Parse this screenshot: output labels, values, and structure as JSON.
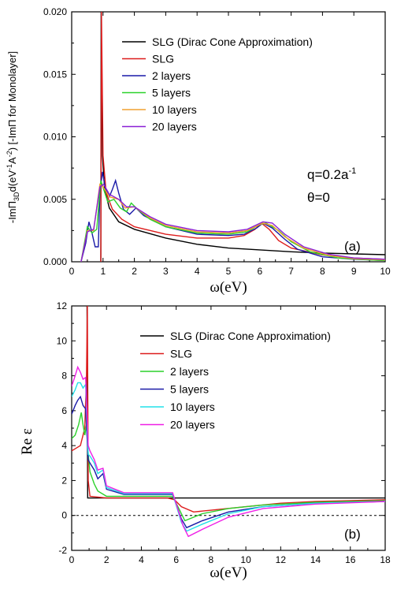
{
  "chart_data": [
    {
      "type": "line",
      "panel_label": "(a)",
      "xlabel": "ω(eV)",
      "ylabel_parts": {
        "a": "-ImΠ",
        "b": "3D",
        "c": "d(eV",
        "d": "-1",
        "e": "A",
        "f": "-2",
        "g": ") [-ImΠ for Monolayer]"
      },
      "xlim": [
        0,
        10
      ],
      "ylim": [
        0,
        0.02
      ],
      "x_ticks": [
        0,
        1,
        2,
        3,
        4,
        5,
        6,
        7,
        8,
        9,
        10
      ],
      "x_tick_labels": [
        "0",
        "1",
        "2",
        "3",
        "4",
        "5",
        "6",
        "7",
        "8",
        "9",
        "10"
      ],
      "y_ticks": [
        0,
        0.005,
        0.01,
        0.015,
        0.02
      ],
      "y_tick_labels": [
        "0.000",
        "0.005",
        "0.010",
        "0.015",
        "0.020"
      ],
      "annotation": {
        "q_text": "q=0.2a",
        "q_sup": "-1",
        "theta_text": "θ=0"
      },
      "series": [
        {
          "name": "SLG (Dirac Cone Approximation)",
          "color": "#000000",
          "points": [
            [
              0.93,
              0
            ],
            [
              0.94,
              0.02
            ],
            [
              0.98,
              0.0085
            ],
            [
              1.05,
              0.0058
            ],
            [
              1.2,
              0.0043
            ],
            [
              1.5,
              0.0032
            ],
            [
              2,
              0.0026
            ],
            [
              3,
              0.0019
            ],
            [
              4,
              0.0014
            ],
            [
              5,
              0.0011
            ],
            [
              6,
              0.00095
            ],
            [
              7,
              0.0008
            ],
            [
              8,
              0.0007
            ],
            [
              9,
              0.00063
            ],
            [
              10,
              0.00057
            ]
          ]
        },
        {
          "name": "SLG",
          "color": "#dd1c1c",
          "points": [
            [
              0.93,
              0
            ],
            [
              0.95,
              0.02
            ],
            [
              1.0,
              0.0085
            ],
            [
              1.1,
              0.0055
            ],
            [
              1.3,
              0.0042
            ],
            [
              1.6,
              0.0034
            ],
            [
              2,
              0.0028
            ],
            [
              3,
              0.0022
            ],
            [
              4,
              0.0019
            ],
            [
              5,
              0.0019
            ],
            [
              5.5,
              0.0021
            ],
            [
              5.85,
              0.0026
            ],
            [
              6.05,
              0.0031
            ],
            [
              6.3,
              0.0026
            ],
            [
              6.6,
              0.0017
            ],
            [
              7,
              0.0011
            ],
            [
              8,
              0.00055
            ],
            [
              9,
              0.0003
            ],
            [
              10,
              0.0002
            ]
          ]
        },
        {
          "name": "2 layers",
          "color": "#1a1aa8",
          "points": [
            [
              0.3,
              0
            ],
            [
              0.45,
              0.0015
            ],
            [
              0.55,
              0.0032
            ],
            [
              0.62,
              0.0026
            ],
            [
              0.75,
              0.0012
            ],
            [
              0.85,
              0.0012
            ],
            [
              0.9,
              0.0055
            ],
            [
              0.98,
              0.0072
            ],
            [
              1.08,
              0.0058
            ],
            [
              1.2,
              0.0052
            ],
            [
              1.3,
              0.0058
            ],
            [
              1.4,
              0.0065
            ],
            [
              1.5,
              0.0055
            ],
            [
              1.65,
              0.0042
            ],
            [
              1.85,
              0.0038
            ],
            [
              2.05,
              0.0043
            ],
            [
              2.3,
              0.0037
            ],
            [
              3,
              0.0028
            ],
            [
              4,
              0.0022
            ],
            [
              5,
              0.0021
            ],
            [
              5.5,
              0.0022
            ],
            [
              5.9,
              0.0027
            ],
            [
              6.1,
              0.0031
            ],
            [
              6.4,
              0.0027
            ],
            [
              6.8,
              0.0018
            ],
            [
              7.2,
              0.001
            ],
            [
              8,
              0.0004
            ],
            [
              9,
              0.0002
            ],
            [
              10,
              0.0001
            ]
          ]
        },
        {
          "name": "5 layers",
          "color": "#2bd12b",
          "points": [
            [
              0.3,
              0
            ],
            [
              0.5,
              0.0028
            ],
            [
              0.65,
              0.0023
            ],
            [
              0.8,
              0.0026
            ],
            [
              0.93,
              0.0065
            ],
            [
              1.02,
              0.0058
            ],
            [
              1.15,
              0.0048
            ],
            [
              1.35,
              0.005
            ],
            [
              1.55,
              0.0043
            ],
            [
              1.75,
              0.004
            ],
            [
              1.9,
              0.0047
            ],
            [
              2.1,
              0.0042
            ],
            [
              2.5,
              0.0034
            ],
            [
              3,
              0.0028
            ],
            [
              4,
              0.0023
            ],
            [
              5,
              0.0022
            ],
            [
              5.6,
              0.0024
            ],
            [
              6,
              0.003
            ],
            [
              6.2,
              0.0031
            ],
            [
              6.6,
              0.0025
            ],
            [
              7,
              0.0016
            ],
            [
              7.6,
              0.0008
            ],
            [
              8.5,
              0.0003
            ],
            [
              9.5,
              0.00015
            ],
            [
              10,
              0.0001
            ]
          ]
        },
        {
          "name": "10 layers",
          "color": "#f0a030",
          "points": [
            [
              0.3,
              0
            ],
            [
              0.5,
              0.0025
            ],
            [
              0.7,
              0.0025
            ],
            [
              0.9,
              0.0062
            ],
            [
              1.0,
              0.006
            ],
            [
              1.2,
              0.0052
            ],
            [
              1.5,
              0.005
            ],
            [
              1.7,
              0.0043
            ],
            [
              2.0,
              0.0044
            ],
            [
              2.5,
              0.0035
            ],
            [
              3,
              0.0029
            ],
            [
              4,
              0.0024
            ],
            [
              5,
              0.0023
            ],
            [
              5.6,
              0.0025
            ],
            [
              6.1,
              0.0031
            ],
            [
              6.4,
              0.0029
            ],
            [
              6.8,
              0.002
            ],
            [
              7.4,
              0.0011
            ],
            [
              8.2,
              0.0005
            ],
            [
              9,
              0.00025
            ],
            [
              10,
              0.00015
            ]
          ]
        },
        {
          "name": "20 layers",
          "color": "#8a1fd6",
          "points": [
            [
              0.3,
              0
            ],
            [
              0.5,
              0.0024
            ],
            [
              0.7,
              0.0026
            ],
            [
              0.9,
              0.006
            ],
            [
              1.02,
              0.0062
            ],
            [
              1.2,
              0.0054
            ],
            [
              1.5,
              0.005
            ],
            [
              1.75,
              0.0044
            ],
            [
              2.0,
              0.0044
            ],
            [
              2.5,
              0.0036
            ],
            [
              3,
              0.003
            ],
            [
              4,
              0.0025
            ],
            [
              5,
              0.0024
            ],
            [
              5.6,
              0.0026
            ],
            [
              6.1,
              0.0032
            ],
            [
              6.4,
              0.0031
            ],
            [
              6.8,
              0.0022
            ],
            [
              7.4,
              0.0012
            ],
            [
              8.2,
              0.0006
            ],
            [
              9,
              0.0003
            ],
            [
              10,
              0.0002
            ]
          ]
        }
      ]
    },
    {
      "type": "line",
      "panel_label": "(b)",
      "xlabel": "ω(eV)",
      "ylabel": "Re ε",
      "xlim": [
        0,
        18
      ],
      "ylim": [
        -2,
        12
      ],
      "x_ticks": [
        0,
        2,
        4,
        6,
        8,
        10,
        12,
        14,
        16,
        18
      ],
      "x_tick_labels": [
        "0",
        "2",
        "4",
        "6",
        "8",
        "10",
        "12",
        "14",
        "16",
        "18"
      ],
      "y_ticks": [
        -2,
        0,
        2,
        4,
        6,
        8,
        10,
        12
      ],
      "y_tick_labels": [
        "-2",
        "0",
        "2",
        "4",
        "6",
        "8",
        "10",
        "12"
      ],
      "zero_line": "dashed",
      "series": [
        {
          "name": "SLG (Dirac Cone Approximation)",
          "color": "#000000",
          "points": [
            [
              0.88,
              12
            ],
            [
              0.92,
              1.0
            ],
            [
              18,
              1.0
            ]
          ]
        },
        {
          "name": "SLG",
          "color": "#dd1c1c",
          "points": [
            [
              0,
              3.7
            ],
            [
              0.5,
              4.0
            ],
            [
              0.75,
              5.0
            ],
            [
              0.85,
              8
            ],
            [
              0.9,
              12
            ],
            [
              0.95,
              2.0
            ],
            [
              1.05,
              1.1
            ],
            [
              2,
              1.0
            ],
            [
              5.5,
              1.0
            ],
            [
              5.9,
              0.9
            ],
            [
              6.3,
              0.5
            ],
            [
              7,
              0.2
            ],
            [
              8,
              0.3
            ],
            [
              10,
              0.5
            ],
            [
              12,
              0.7
            ],
            [
              14,
              0.8
            ],
            [
              16,
              0.85
            ],
            [
              18,
              0.9
            ]
          ]
        },
        {
          "name": "2 layers",
          "color": "#2bd12b",
          "points": [
            [
              0,
              4.4
            ],
            [
              0.2,
              4.6
            ],
            [
              0.4,
              5.2
            ],
            [
              0.55,
              5.9
            ],
            [
              0.65,
              5.2
            ],
            [
              0.75,
              4.6
            ],
            [
              0.85,
              5.2
            ],
            [
              0.95,
              3.5
            ],
            [
              1.05,
              2.5
            ],
            [
              1.3,
              1.8
            ],
            [
              1.5,
              1.4
            ],
            [
              2,
              1.1
            ],
            [
              3,
              1.1
            ],
            [
              5.8,
              1.1
            ],
            [
              6.2,
              0.3
            ],
            [
              6.5,
              -0.3
            ],
            [
              7.5,
              0.1
            ],
            [
              9,
              0.4
            ],
            [
              11,
              0.6
            ],
            [
              14,
              0.75
            ],
            [
              18,
              0.85
            ]
          ]
        },
        {
          "name": "5 layers",
          "color": "#1a1aa8",
          "points": [
            [
              0,
              5.8
            ],
            [
              0.2,
              6.3
            ],
            [
              0.35,
              6.6
            ],
            [
              0.5,
              6.8
            ],
            [
              0.65,
              6.3
            ],
            [
              0.8,
              6.1
            ],
            [
              0.95,
              3.2
            ],
            [
              1.05,
              3.0
            ],
            [
              1.3,
              2.6
            ],
            [
              1.5,
              2.1
            ],
            [
              1.8,
              2.4
            ],
            [
              2.0,
              1.5
            ],
            [
              3,
              1.2
            ],
            [
              5.8,
              1.2
            ],
            [
              6.3,
              -0.2
            ],
            [
              6.6,
              -0.7
            ],
            [
              7.5,
              -0.3
            ],
            [
              9,
              0.2
            ],
            [
              11,
              0.5
            ],
            [
              14,
              0.7
            ],
            [
              18,
              0.8
            ]
          ]
        },
        {
          "name": "10 layers",
          "color": "#22e0e8",
          "points": [
            [
              0,
              6.8
            ],
            [
              0.2,
              7.2
            ],
            [
              0.35,
              7.6
            ],
            [
              0.5,
              7.6
            ],
            [
              0.65,
              7.3
            ],
            [
              0.8,
              7.5
            ],
            [
              0.95,
              3.5
            ],
            [
              1.05,
              3.4
            ],
            [
              1.3,
              3.0
            ],
            [
              1.5,
              2.4
            ],
            [
              1.8,
              2.6
            ],
            [
              2.0,
              1.6
            ],
            [
              3,
              1.25
            ],
            [
              5.8,
              1.25
            ],
            [
              6.3,
              -0.4
            ],
            [
              6.6,
              -0.9
            ],
            [
              7.5,
              -0.5
            ],
            [
              9,
              0.1
            ],
            [
              11,
              0.5
            ],
            [
              14,
              0.7
            ],
            [
              18,
              0.8
            ]
          ]
        },
        {
          "name": "20 layers",
          "color": "#ef1fe6",
          "points": [
            [
              0,
              7.4
            ],
            [
              0.2,
              8.0
            ],
            [
              0.35,
              8.5
            ],
            [
              0.5,
              8.2
            ],
            [
              0.65,
              7.8
            ],
            [
              0.8,
              7.9
            ],
            [
              0.95,
              4.0
            ],
            [
              1.05,
              3.7
            ],
            [
              1.3,
              3.2
            ],
            [
              1.5,
              2.6
            ],
            [
              1.8,
              2.7
            ],
            [
              2.0,
              1.7
            ],
            [
              3,
              1.3
            ],
            [
              5.8,
              1.3
            ],
            [
              6.4,
              -0.6
            ],
            [
              6.7,
              -1.2
            ],
            [
              7.5,
              -0.8
            ],
            [
              9,
              -0.1
            ],
            [
              11,
              0.4
            ],
            [
              14,
              0.65
            ],
            [
              18,
              0.8
            ]
          ]
        }
      ]
    }
  ]
}
